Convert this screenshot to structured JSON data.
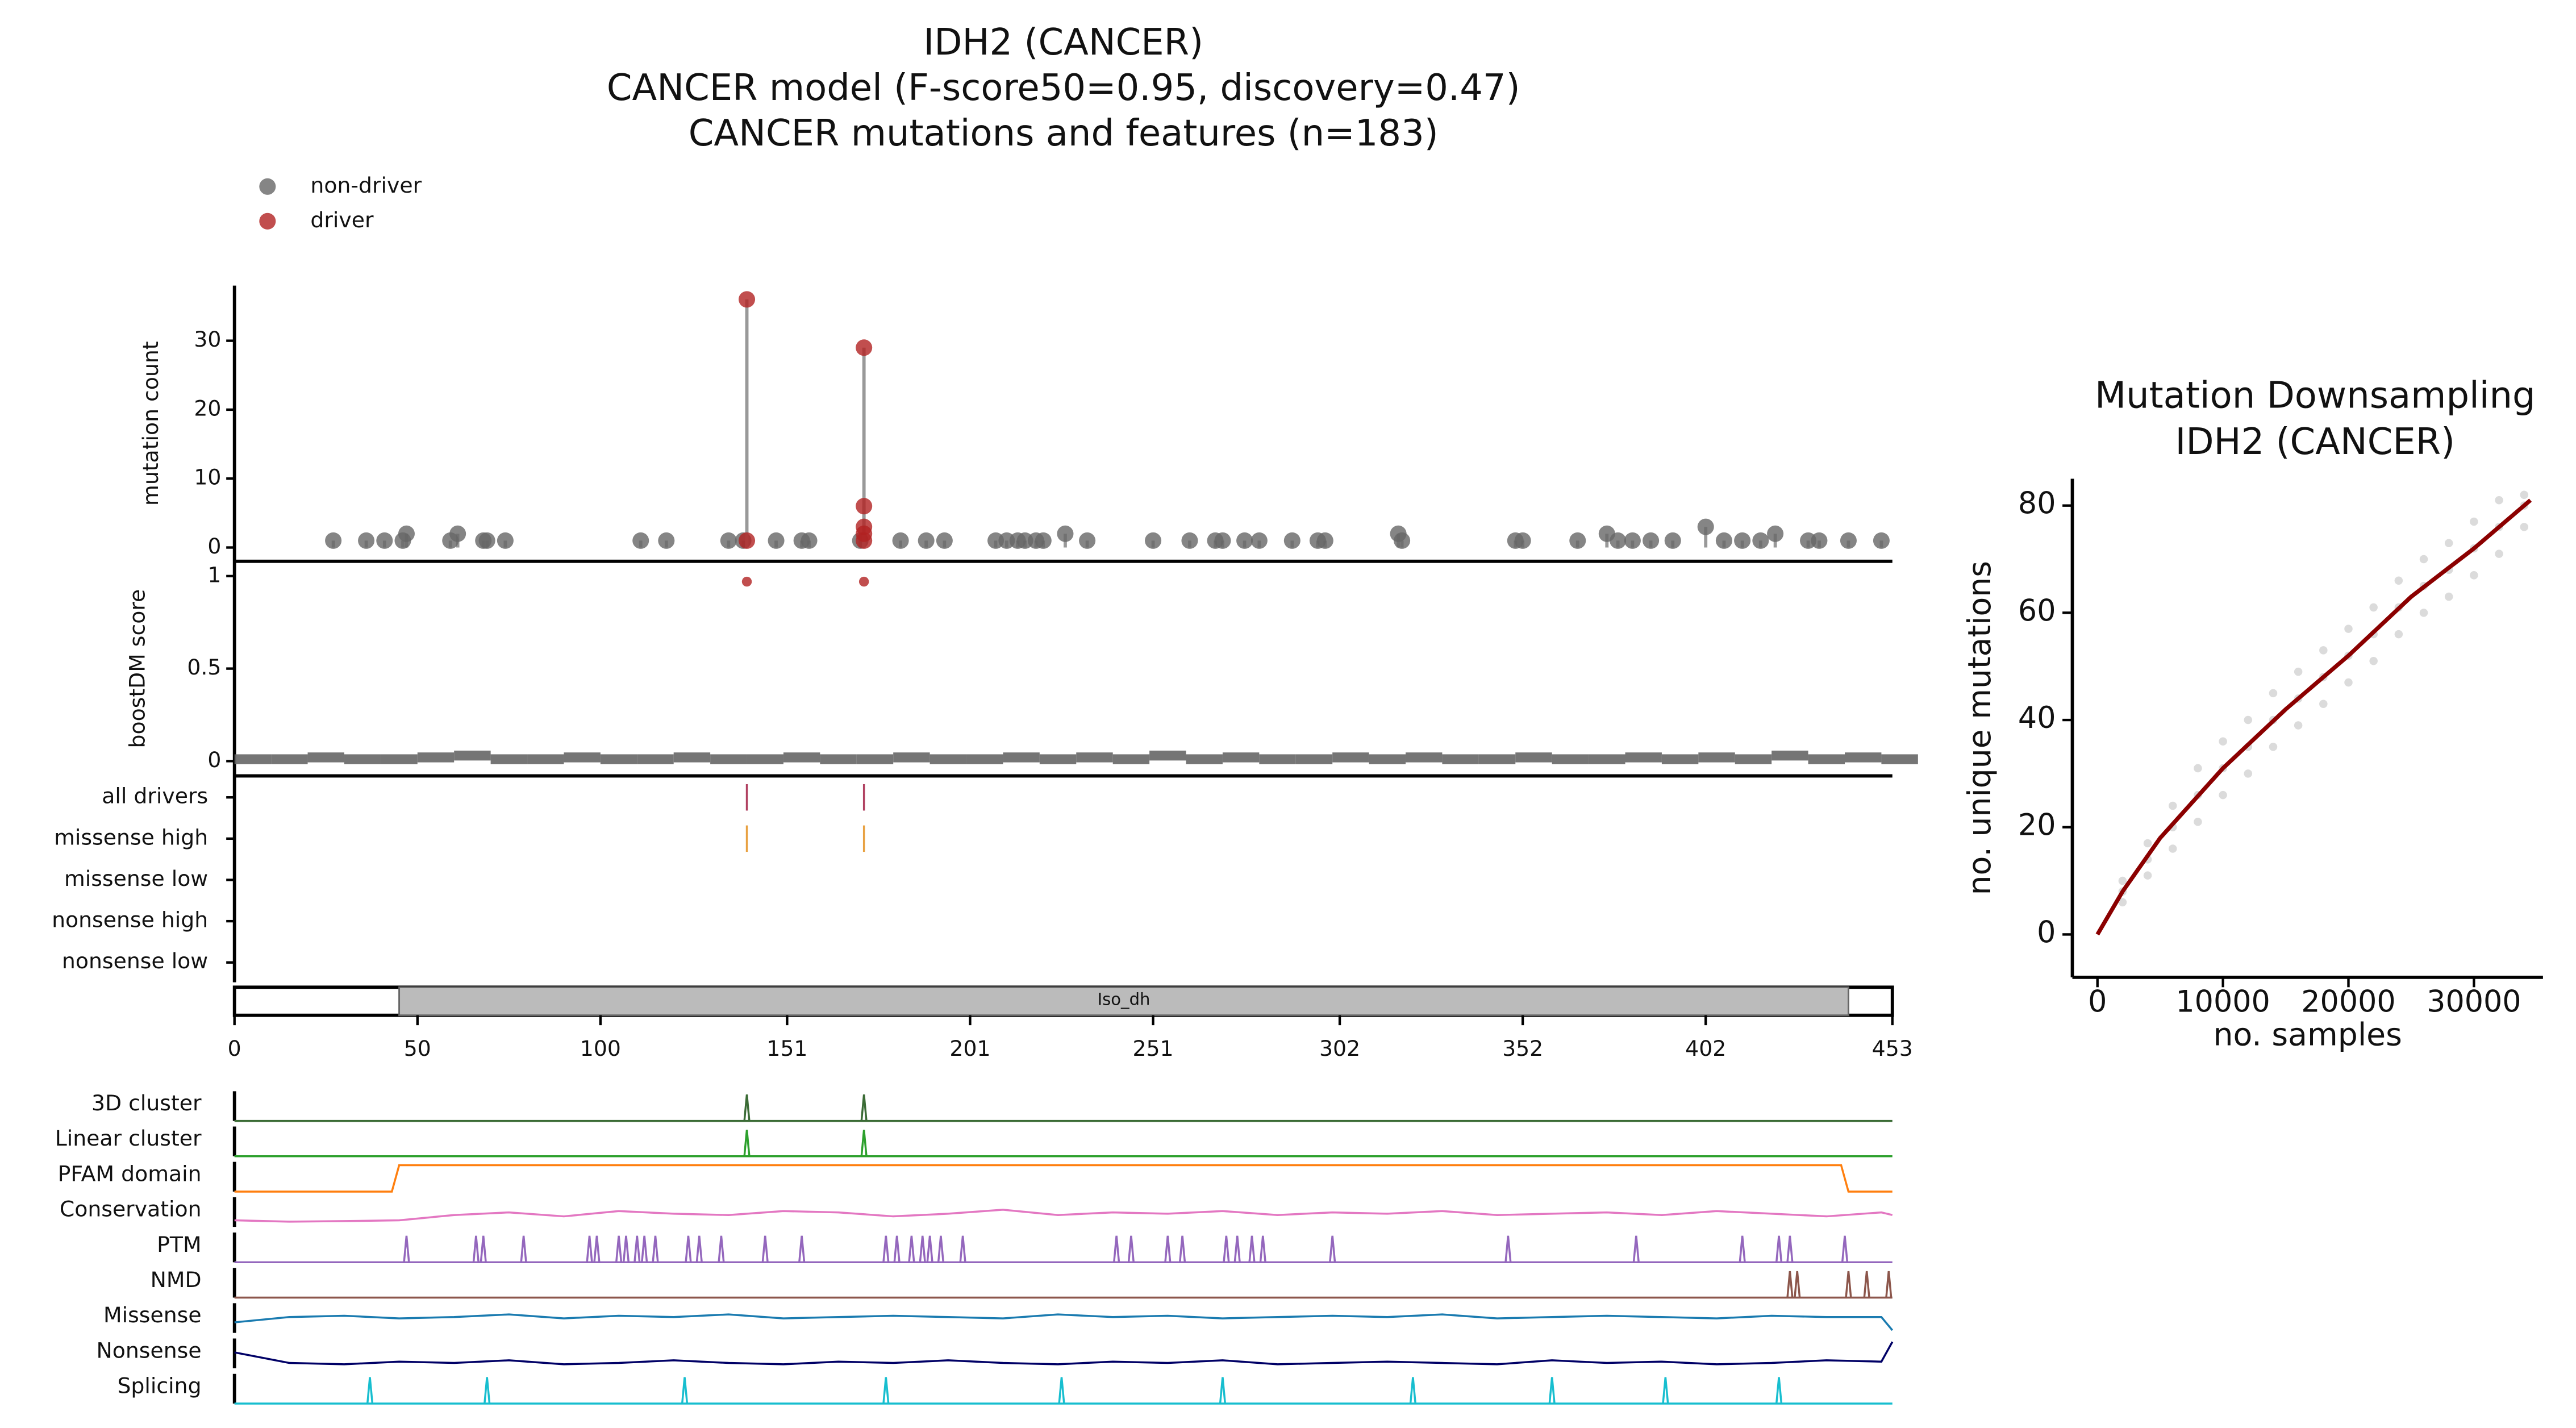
{
  "chart_data": [
    {
      "type": "lollipop",
      "title": [
        "IDH2 (CANCER)",
        "CANCER model (F-score50=0.95, discovery=0.47)",
        "CANCER mutations and features (n=183)"
      ],
      "ylabel": "mutation count",
      "xlim": [
        0,
        453
      ],
      "ylim": [
        -2,
        38
      ],
      "yticks": [
        0,
        10,
        20,
        30
      ],
      "legend": "upper left",
      "series": [
        {
          "name": "non-driver",
          "color": "#666666",
          "x": [
            27,
            36,
            41,
            46,
            47,
            59,
            61,
            68,
            69,
            74,
            111,
            118,
            135,
            139,
            148,
            155,
            157,
            171,
            182,
            189,
            194,
            208,
            211,
            214,
            216,
            219,
            221,
            227,
            233,
            251,
            261,
            268,
            270,
            276,
            280,
            289,
            296,
            298,
            318,
            319,
            350,
            352,
            367,
            375,
            378,
            382,
            387,
            393,
            402,
            407,
            412,
            417,
            421,
            430,
            433,
            441,
            450
          ],
          "values": [
            1,
            1,
            1,
            1,
            2,
            1,
            2,
            1,
            1,
            1,
            1,
            1,
            1,
            1,
            1,
            1,
            1,
            1,
            1,
            1,
            1,
            1,
            1,
            1,
            1,
            1,
            1,
            2,
            1,
            1,
            1,
            1,
            1,
            1,
            1,
            1,
            1,
            1,
            2,
            1,
            1,
            1,
            1,
            2,
            1,
            1,
            1,
            1,
            3,
            1,
            1,
            1,
            2,
            1,
            1,
            1,
            1
          ]
        },
        {
          "name": "driver",
          "color": "#b22222",
          "x": [
            140,
            140,
            172,
            172,
            172,
            172,
            172
          ],
          "values": [
            36,
            1,
            29,
            6,
            3,
            2,
            1
          ]
        }
      ]
    },
    {
      "type": "scatter",
      "ylabel": "boostDM score",
      "xlim": [
        0,
        453
      ],
      "ylim": [
        -0.08,
        1.08
      ],
      "yticks": [
        0,
        0.5,
        1
      ],
      "series": [
        {
          "color": "#666666",
          "x": [
            0,
            10,
            20,
            30,
            40,
            50,
            60,
            70,
            80,
            90,
            100,
            110,
            120,
            130,
            140,
            150,
            160,
            170,
            180,
            190,
            200,
            210,
            220,
            230,
            240,
            250,
            260,
            270,
            280,
            290,
            300,
            310,
            320,
            330,
            340,
            350,
            360,
            370,
            380,
            390,
            400,
            410,
            420,
            430,
            440,
            450
          ],
          "values": [
            0.01,
            0.01,
            0.02,
            0.01,
            0.01,
            0.02,
            0.03,
            0.01,
            0.01,
            0.02,
            0.01,
            0.01,
            0.02,
            0.01,
            0.01,
            0.02,
            0.01,
            0.01,
            0.02,
            0.01,
            0.01,
            0.02,
            0.01,
            0.02,
            0.01,
            0.03,
            0.01,
            0.02,
            0.01,
            0.01,
            0.02,
            0.01,
            0.02,
            0.01,
            0.01,
            0.02,
            0.01,
            0.01,
            0.02,
            0.01,
            0.02,
            0.01,
            0.03,
            0.01,
            0.02,
            0.01
          ]
        },
        {
          "color": "#b22222",
          "x": [
            140,
            172
          ],
          "values": [
            0.97,
            0.97
          ]
        }
      ]
    },
    {
      "type": "track",
      "xlim": [
        0,
        453
      ],
      "categories": [
        "all drivers",
        "missense high",
        "missense low",
        "nonsense high",
        "nonsense low"
      ],
      "colors": [
        "#b04060",
        "#e8a040",
        "#888888",
        "#888888",
        "#888888"
      ],
      "positions": [
        [
          140,
          172
        ],
        [
          140,
          172
        ],
        [],
        [],
        []
      ]
    },
    {
      "type": "domain",
      "xlim": [
        0,
        453
      ],
      "xticks": [
        0,
        50,
        100,
        151,
        201,
        251,
        302,
        352,
        402,
        453
      ],
      "domains": [
        {
          "label": "Iso_dh",
          "start": 45,
          "end": 441,
          "color": "#bbbbbb"
        }
      ]
    },
    {
      "type": "feature",
      "xlim": [
        0,
        453
      ],
      "series": [
        {
          "name": "3D cluster",
          "color": "#3a6b35",
          "peaks": [
            140,
            172
          ]
        },
        {
          "name": "Linear cluster",
          "color": "#2ca02c",
          "peaks": [
            140,
            172
          ]
        },
        {
          "name": "PFAM domain",
          "color": "#ff7f0e",
          "x": [
            0,
            43,
            45,
            439,
            441,
            453
          ],
          "values": [
            0,
            0,
            1,
            1,
            0,
            0
          ]
        },
        {
          "name": "Conservation",
          "color": "#e377c2",
          "x": [
            0,
            15,
            30,
            45,
            60,
            75,
            90,
            105,
            120,
            135,
            150,
            165,
            180,
            195,
            210,
            225,
            240,
            255,
            270,
            285,
            300,
            315,
            330,
            345,
            360,
            375,
            390,
            405,
            420,
            435,
            450,
            453
          ],
          "values": [
            0.25,
            0.2,
            0.22,
            0.25,
            0.45,
            0.55,
            0.4,
            0.6,
            0.5,
            0.45,
            0.6,
            0.55,
            0.4,
            0.5,
            0.65,
            0.45,
            0.55,
            0.5,
            0.6,
            0.45,
            0.55,
            0.5,
            0.6,
            0.45,
            0.5,
            0.55,
            0.45,
            0.6,
            0.5,
            0.4,
            0.55,
            0.45
          ]
        },
        {
          "name": "PTM",
          "color": "#9467bd",
          "peaks": [
            47,
            66,
            68,
            79,
            97,
            99,
            105,
            107,
            110,
            112,
            115,
            124,
            127,
            133,
            145,
            155,
            178,
            181,
            185,
            188,
            190,
            193,
            199,
            241,
            245,
            255,
            259,
            271,
            274,
            278,
            281,
            300,
            348,
            383,
            412,
            422,
            425,
            440
          ]
        },
        {
          "name": "NMD",
          "color": "#8c564b",
          "peaks": [
            425,
            427,
            441,
            446,
            452
          ]
        },
        {
          "name": "Missense",
          "color": "#1a7bb0",
          "x": [
            0,
            15,
            30,
            45,
            60,
            75,
            90,
            105,
            120,
            135,
            150,
            165,
            180,
            195,
            210,
            225,
            240,
            255,
            270,
            285,
            300,
            315,
            330,
            345,
            360,
            375,
            390,
            405,
            420,
            435,
            450,
            453
          ],
          "values": [
            0.4,
            0.6,
            0.65,
            0.55,
            0.6,
            0.7,
            0.55,
            0.65,
            0.6,
            0.7,
            0.55,
            0.6,
            0.65,
            0.6,
            0.55,
            0.7,
            0.6,
            0.65,
            0.55,
            0.6,
            0.65,
            0.6,
            0.7,
            0.55,
            0.6,
            0.65,
            0.6,
            0.55,
            0.65,
            0.6,
            0.6,
            0.1
          ]
        },
        {
          "name": "Nonsense",
          "color": "#000066",
          "x": [
            0,
            15,
            30,
            45,
            60,
            75,
            90,
            105,
            120,
            135,
            150,
            165,
            180,
            195,
            210,
            225,
            240,
            255,
            270,
            285,
            300,
            315,
            330,
            345,
            360,
            375,
            390,
            405,
            420,
            435,
            450,
            453
          ],
          "values": [
            0.6,
            0.2,
            0.15,
            0.25,
            0.2,
            0.3,
            0.15,
            0.2,
            0.3,
            0.2,
            0.15,
            0.25,
            0.2,
            0.3,
            0.2,
            0.15,
            0.25,
            0.2,
            0.3,
            0.15,
            0.2,
            0.25,
            0.2,
            0.15,
            0.3,
            0.2,
            0.25,
            0.15,
            0.2,
            0.3,
            0.25,
            1
          ]
        },
        {
          "name": "Splicing",
          "color": "#17becf",
          "peaks": [
            37,
            69,
            123,
            178,
            226,
            270,
            322,
            360,
            391,
            422
          ]
        }
      ]
    },
    {
      "type": "line",
      "title": [
        "Mutation Downsampling",
        "IDH2 (CANCER)"
      ],
      "xlabel": "no. samples",
      "ylabel": "no. unique mutations",
      "xlim": [
        -2000,
        35500
      ],
      "ylim": [
        -8,
        85
      ],
      "xticks": [
        0,
        10000,
        20000,
        30000
      ],
      "yticks": [
        0,
        20,
        40,
        60,
        80
      ],
      "points": {
        "color": "#999999",
        "x": [
          2000,
          4000,
          6000,
          8000,
          10000,
          12000,
          14000,
          16000,
          18000,
          20000,
          22000,
          24000,
          26000,
          28000,
          30000,
          32000,
          34000,
          2000,
          4000,
          6000,
          8000,
          10000,
          12000,
          14000,
          16000,
          18000,
          20000,
          22000,
          24000,
          26000,
          28000,
          30000,
          32000,
          34000,
          2000,
          4000,
          6000,
          8000,
          10000,
          12000,
          14000,
          16000,
          18000,
          20000,
          22000,
          24000,
          26000,
          28000,
          30000,
          32000,
          34000
        ],
        "values": [
          6,
          11,
          16,
          21,
          26,
          30,
          35,
          39,
          43,
          47,
          51,
          56,
          60,
          63,
          67,
          71,
          76,
          8,
          14,
          20,
          26,
          31,
          35,
          40,
          44,
          48,
          52,
          56,
          61,
          65,
          68,
          72,
          76,
          80,
          10,
          17,
          24,
          31,
          36,
          40,
          45,
          49,
          53,
          57,
          61,
          66,
          70,
          73,
          77,
          81,
          82
        ]
      },
      "line": {
        "color": "#8b0000",
        "x": [
          0,
          2000,
          5000,
          10000,
          15000,
          20000,
          25000,
          30000,
          34500
        ],
        "values": [
          0,
          8,
          18,
          31,
          42,
          52,
          63,
          72,
          81
        ]
      }
    }
  ]
}
